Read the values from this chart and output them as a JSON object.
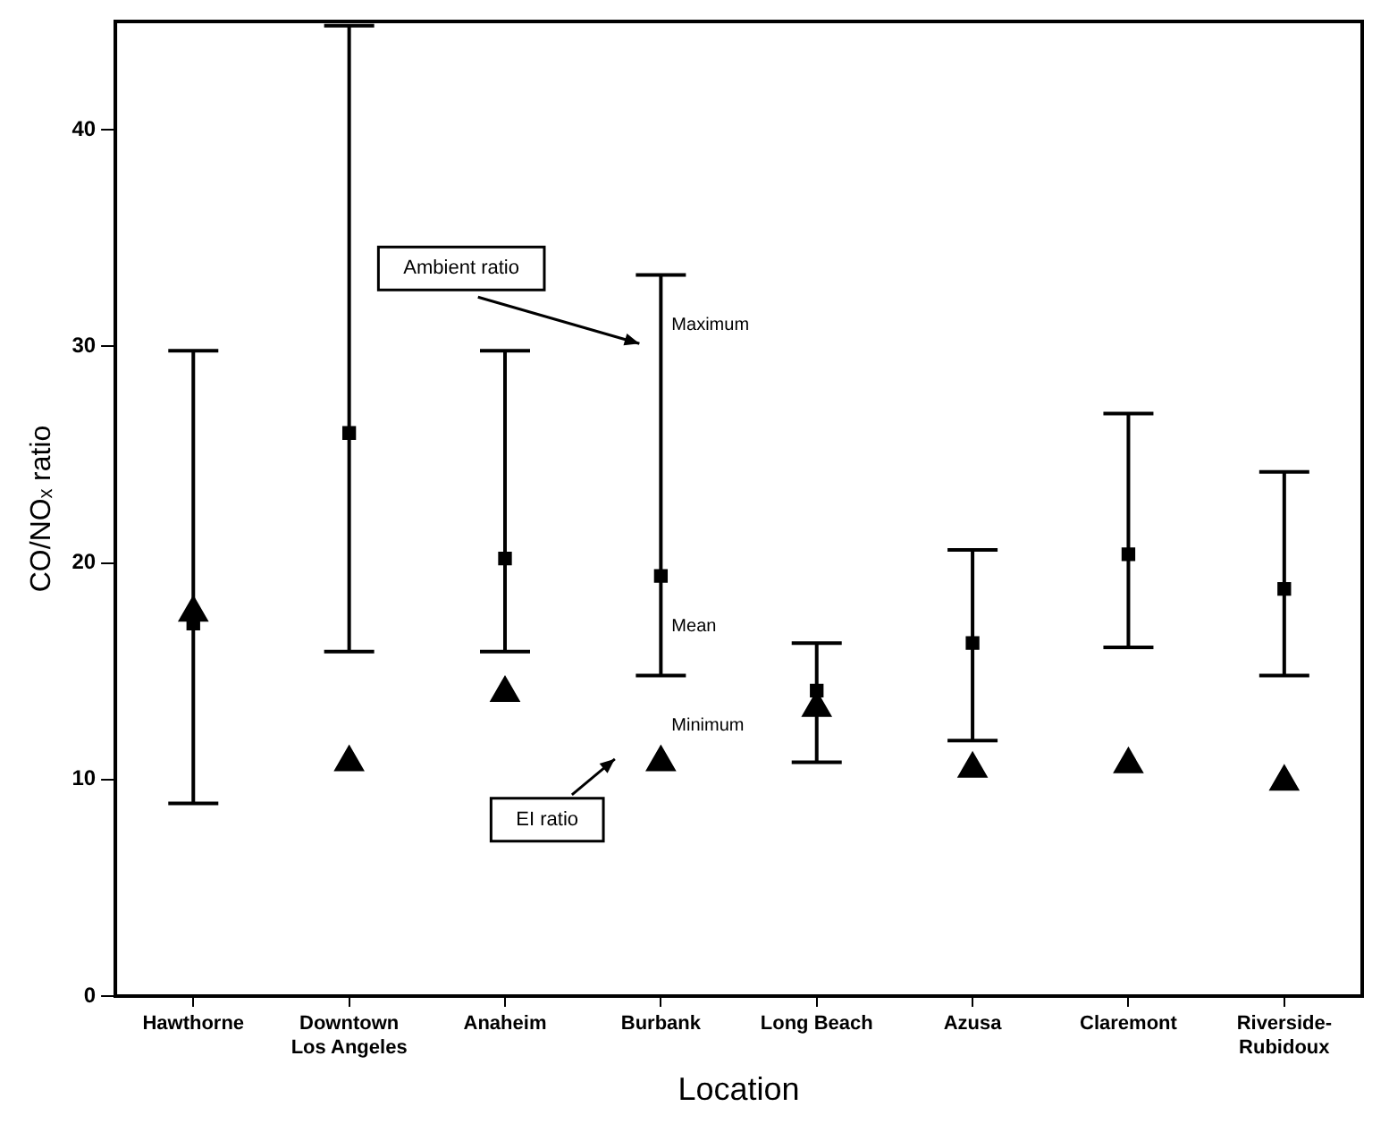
{
  "chart_data": {
    "type": "scatter",
    "xlabel": "Location",
    "ylabel": "CO/NOₓ ratio",
    "categories": [
      "Hawthorne",
      "Downtown\nLos Angeles",
      "Anaheim",
      "Burbank",
      "Long Beach",
      "Azusa",
      "Claremont",
      "Riverside-\nRubidoux"
    ],
    "ylim": [
      0,
      45
    ],
    "yticks": [
      0,
      10,
      20,
      30,
      40
    ],
    "grid": false,
    "legend": false,
    "series": [
      {
        "color": "#000000",
        "marker": "square",
        "values": [
          17.2,
          26.0,
          20.2,
          19.4,
          14.1,
          16.3,
          20.4,
          18.8
        ],
        "errors": [
          [
            8.9,
            29.8
          ],
          [
            15.9,
            44.8
          ],
          [
            15.9,
            29.8
          ],
          [
            14.8,
            33.3
          ],
          [
            10.8,
            16.3
          ],
          [
            11.8,
            20.6
          ],
          [
            16.1,
            26.9
          ],
          [
            14.8,
            24.2
          ]
        ]
      },
      {
        "color": "#000000",
        "marker": "triangle",
        "values": [
          17.7,
          10.8,
          14.0,
          10.8,
          13.3,
          10.5,
          10.7,
          9.9
        ]
      }
    ],
    "annotations": [
      "Ambient ratio",
      "EI ratio",
      {
        "text": "Maximum",
        "x": "Burbank",
        "y": 33.3
      },
      {
        "text": "Mean",
        "x": "Burbank",
        "y": 19.4
      },
      {
        "text": "Minimum",
        "x": "Burbank",
        "y": 14.8
      }
    ]
  }
}
